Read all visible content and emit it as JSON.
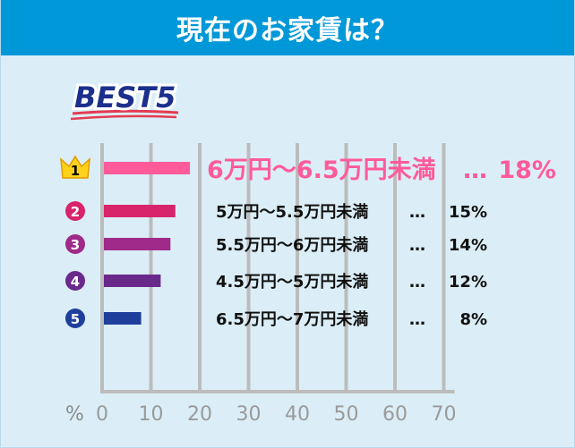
{
  "header": {
    "title": "現在のお家賃は？"
  },
  "badge": {
    "text": "BEST5",
    "color": "#1b2f8c",
    "underline_color": "#e53a50"
  },
  "chart_data": {
    "type": "bar",
    "orientation": "horizontal",
    "title": "現在のお家賃は？",
    "xlabel": "%",
    "xlim": [
      0,
      70
    ],
    "x_ticks": [
      "0",
      "10",
      "20",
      "30",
      "40",
      "50",
      "60",
      "70"
    ],
    "grid": true,
    "categories": [
      "6万円〜6.5万円未満",
      "5万円〜5.5万円未満",
      "5.5万円〜6万円未満",
      "4.5万円〜5万円未満",
      "6.5万円〜7万円未満"
    ],
    "values": [
      18,
      15,
      14,
      12,
      8
    ],
    "value_labels": [
      "18%",
      "15%",
      "14%",
      "12%",
      "8%"
    ],
    "ranks": [
      "1",
      "2",
      "3",
      "4",
      "5"
    ],
    "colors": [
      "#ff5a9a",
      "#d8246a",
      "#a02a8a",
      "#6a2a8c",
      "#1f3f9c"
    ]
  }
}
